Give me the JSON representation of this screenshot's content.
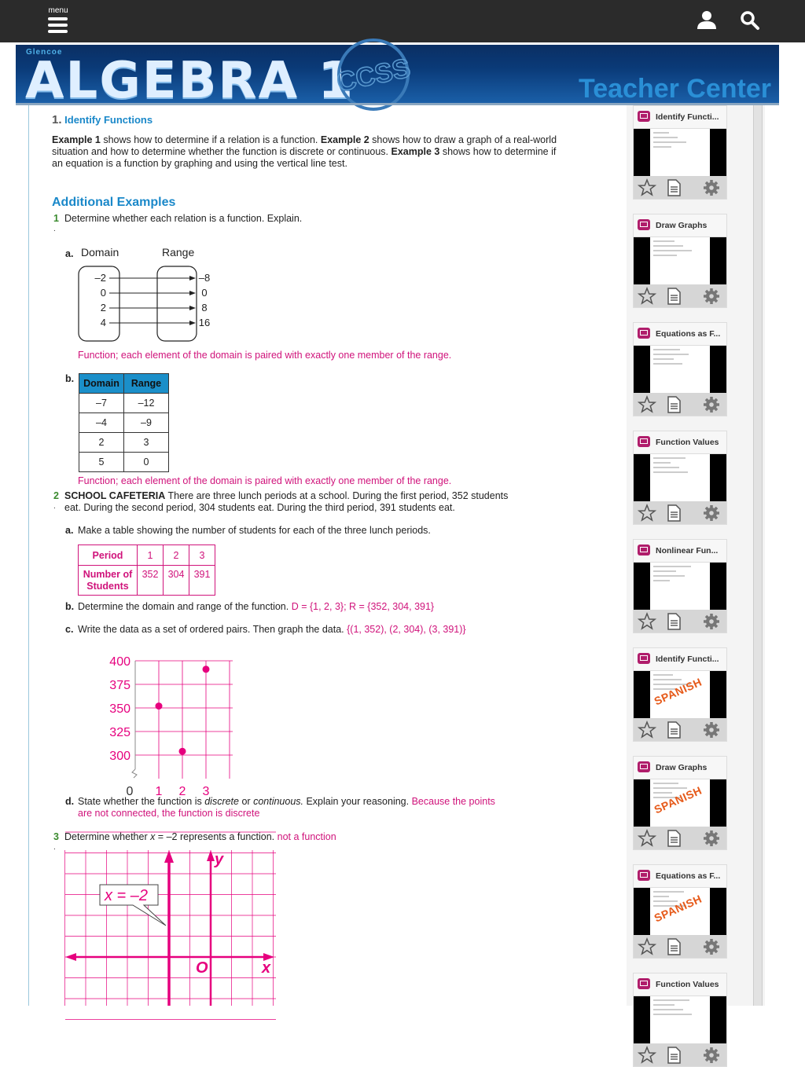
{
  "topbar": {
    "menu_label": "menu"
  },
  "banner": {
    "brand": "Glencoe",
    "title": "ALGEBRA 1",
    "seal": "CCSS",
    "subtitle": "Teacher Center"
  },
  "lesson": {
    "number": "1.",
    "title": "Identify Functions",
    "intro": {
      "e1": "Example 1",
      "t1": " shows how to determine if a relation is a function. ",
      "e2": "Example 2",
      "t2": " shows how to draw a graph of a real-world situation and how to determine whether the function is discrete or continuous. ",
      "e3": "Example 3",
      "t3": " shows how to determine if an equation is a function by graphing and using the vertical line test."
    },
    "additional_heading": "Additional Examples"
  },
  "ex1": {
    "num": "1",
    "prompt": "Determine whether each relation is a function. Explain.",
    "a_label": "a.",
    "domain_label": "Domain",
    "range_label": "Range",
    "domain": [
      "–2",
      "0",
      "2",
      "4"
    ],
    "range": [
      "–8",
      "0",
      "8",
      "16"
    ],
    "a_answer": "Function; each element of the domain is paired with exactly one member of the range.",
    "b_label": "b.",
    "table_headers": [
      "Domain",
      "Range"
    ],
    "table_rows": [
      [
        "–7",
        "–12"
      ],
      [
        "–4",
        "–9"
      ],
      [
        "2",
        "3"
      ],
      [
        "5",
        "0"
      ]
    ],
    "b_answer": "Function; each element of the domain is paired with exactly one member of the range."
  },
  "ex2": {
    "num": "2",
    "bold": "SCHOOL CAFETERIA",
    "prompt": " There are three lunch periods at a school. During the first period, 352 students eat. During the second period, 304 students eat. During the third period, 391 students eat.",
    "a_label": "a.",
    "a_text": "Make a table showing the number of students for each of the three lunch periods.",
    "table": {
      "row1_head": "Period",
      "periods": [
        "1",
        "2",
        "3"
      ],
      "row2_head_1": "Number of",
      "row2_head_2": "Students",
      "students": [
        "352",
        "304",
        "391"
      ]
    },
    "b_label": "b.",
    "b_text": "Determine the domain and range of the function. ",
    "b_answer": "D = {1, 2, 3}; R = {352, 304, 391}",
    "c_label": "c.",
    "c_text": "Write the data as a set of ordered pairs. Then graph the data. ",
    "c_answer": "{(1, 352), (2, 304), (3, 391)}",
    "d_label": "d.",
    "d_text_1": "State whether the function is ",
    "d_it1": "discrete",
    "d_text_2": " or ",
    "d_it2": "continuous.",
    "d_text_3": " Explain your reasoning. ",
    "d_answer_1": "Because the points",
    "d_answer_2": "are not connected, the function is discrete"
  },
  "chart_data": {
    "type": "scatter",
    "x": [
      1,
      2,
      3
    ],
    "y": [
      352,
      304,
      391
    ],
    "x_ticks": [
      "0",
      "1",
      "2",
      "3"
    ],
    "y_ticks": [
      "400",
      "375",
      "350",
      "325",
      "300"
    ],
    "xlim": [
      0,
      4
    ],
    "ylim": [
      275,
      400
    ],
    "grid": true,
    "color": "#e6007e"
  },
  "ex3": {
    "num": "3",
    "prompt_1": "Determine whether ",
    "prompt_it": "x",
    "prompt_2": " = –2 represents a function. ",
    "answer": "not a function",
    "graph": {
      "callout": "x = –2",
      "y_label": "y",
      "x_label": "x",
      "origin": "O"
    }
  },
  "sidebar": {
    "cards": [
      {
        "title": "Identify Functi...",
        "spanish": ""
      },
      {
        "title": "Draw Graphs",
        "spanish": ""
      },
      {
        "title": "Equations as F...",
        "spanish": ""
      },
      {
        "title": "Function Values",
        "spanish": ""
      },
      {
        "title": "Nonlinear Fun...",
        "spanish": ""
      },
      {
        "title": "Identify Functi...",
        "spanish": "SPANISH"
      },
      {
        "title": "Draw Graphs",
        "spanish": "SPANISH"
      },
      {
        "title": "Equations as F...",
        "spanish": "SPANISH"
      },
      {
        "title": "Function Values",
        "spanish": ""
      }
    ]
  }
}
